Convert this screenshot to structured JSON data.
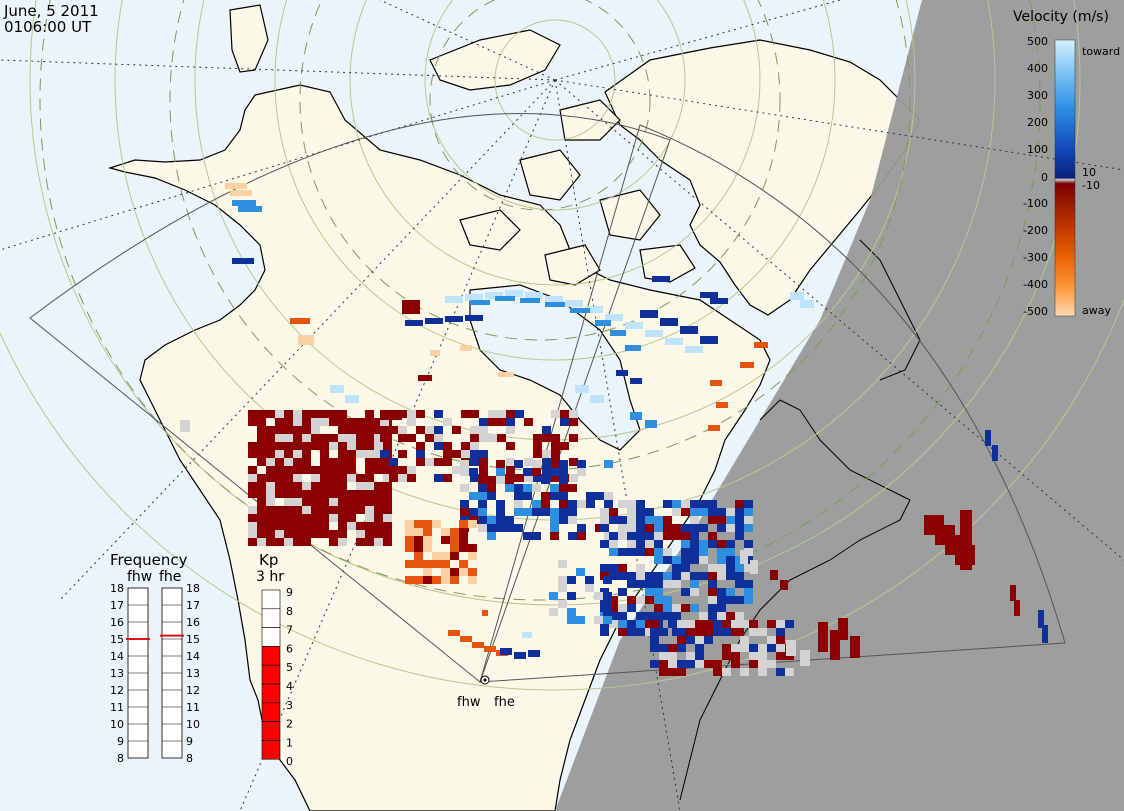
{
  "header": {
    "date": "June, 5 2011",
    "time": "0106:00 UT"
  },
  "velocity_legend": {
    "title": "Velocity (m/s)",
    "toward_label": "toward",
    "away_label": "away",
    "ticks": [
      "500",
      "400",
      "300",
      "200",
      "100",
      "10",
      "0",
      "-10",
      "-100",
      "-200",
      "-300",
      "-400",
      "-500"
    ],
    "colors": {
      "toward_light": "#bfe3fb",
      "toward_mid": "#2e8fe0",
      "toward_dark": "#0f2f9a",
      "near_zero": "#d3d3d3",
      "away_dark": "#8b0000",
      "away_mid": "#e6550d",
      "away_light": "#fdd0a2"
    }
  },
  "frequency_panel": {
    "title": "Frequency",
    "radar_labels": [
      "fhw",
      "fhe"
    ],
    "scale": [
      "18",
      "17",
      "16",
      "15",
      "14",
      "13",
      "12",
      "11",
      "10",
      "9",
      "8"
    ],
    "fhw_frequency": 15,
    "fhe_frequency": 15.2
  },
  "kp_panel": {
    "title": "Kp",
    "subtitle": "3 hr",
    "scale": [
      "9",
      "8",
      "7",
      "6",
      "5",
      "4",
      "3",
      "2",
      "1",
      "0"
    ],
    "kp_value": 6
  },
  "radars": {
    "labels": [
      "fhw",
      "fhe"
    ]
  },
  "map": {
    "land_color": "#fbf8e8",
    "ocean_color": "#eaf4fa",
    "night_color": "#999999",
    "grid_color": "#9aa86a"
  }
}
